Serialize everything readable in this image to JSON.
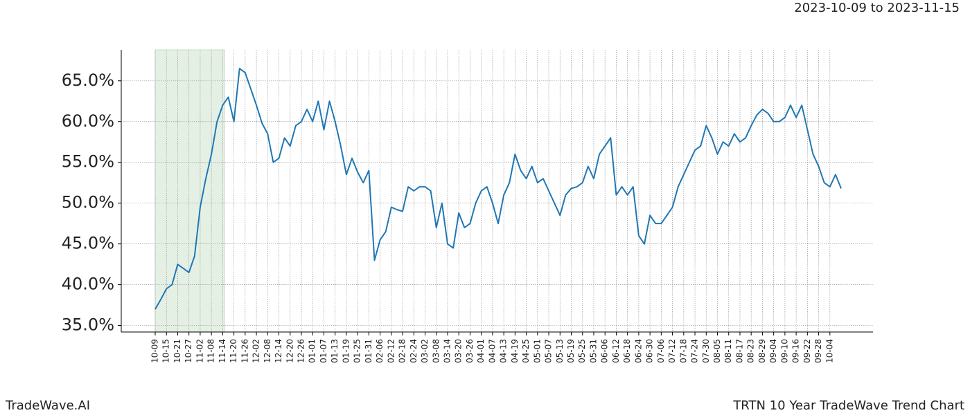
{
  "chart_data": {
    "type": "line",
    "subtitle": "2023-10-09 to 2023-11-15",
    "footer_left": "TradeWave.AI",
    "footer_right": "TRTN 10 Year TradeWave Trend Chart",
    "categories": [
      "10-09",
      null,
      "10-15",
      null,
      "10-21",
      null,
      "10-27",
      null,
      "11-02",
      null,
      "11-08",
      null,
      "11-14",
      null,
      "11-20",
      null,
      "11-26",
      null,
      "12-02",
      null,
      "12-08",
      null,
      "12-14",
      null,
      "12-20",
      null,
      "12-26",
      null,
      "01-01",
      null,
      "01-07",
      null,
      "01-13",
      null,
      "01-19",
      null,
      "01-25",
      null,
      "01-31",
      null,
      "02-06",
      null,
      "02-12",
      null,
      "02-18",
      null,
      "02-24",
      null,
      "03-02",
      null,
      "03-08",
      null,
      "03-14",
      null,
      "03-20",
      null,
      "03-26",
      null,
      "04-01",
      null,
      "04-07",
      null,
      "04-13",
      null,
      "04-19",
      null,
      "04-25",
      null,
      "05-01",
      null,
      "05-07",
      null,
      "05-13",
      null,
      "05-19",
      null,
      "05-25",
      null,
      "05-31",
      null,
      "06-06",
      null,
      "06-12",
      null,
      "06-18",
      null,
      "06-24",
      null,
      "06-30",
      null,
      "07-06",
      null,
      "07-12",
      null,
      "07-18",
      null,
      "07-24",
      null,
      "07-30",
      null,
      "08-05",
      null,
      "08-11",
      null,
      "08-17",
      null,
      "08-23",
      null,
      "08-29",
      null,
      "09-04",
      null,
      "09-10",
      null,
      "09-16",
      null,
      "09-22",
      null,
      "09-28",
      null,
      "10-04",
      null,
      null
    ],
    "series": [
      {
        "color": "#1f77b4",
        "values": [
          37,
          38.2,
          39.5,
          40,
          42.5,
          42,
          41.5,
          43.5,
          49.5,
          53,
          56,
          60,
          62,
          63,
          60,
          66.5,
          66,
          64,
          62,
          59.8,
          58.5,
          55,
          55.5,
          58,
          57,
          59.5,
          60,
          61.5,
          60,
          62.5,
          59,
          62.5,
          60,
          57,
          53.5,
          55.5,
          53.8,
          52.5,
          54,
          43,
          45.5,
          46.5,
          49.5,
          49.2,
          49,
          52,
          51.5,
          52,
          52,
          51.5,
          47,
          50,
          45,
          44.5,
          48.8,
          47,
          47.5,
          50,
          51.5,
          52,
          50,
          47.5,
          51,
          52.5,
          56,
          54,
          53,
          54.5,
          52.5,
          53,
          51.5,
          50,
          48.5,
          51,
          51.8,
          52,
          52.5,
          54.5,
          53,
          56,
          57,
          58,
          51,
          52,
          51,
          52,
          46,
          45,
          48.5,
          47.5,
          47.5,
          48.5,
          49.5,
          52,
          53.5,
          55,
          56.5,
          57,
          59.5,
          58,
          56,
          57.5,
          57,
          58.5,
          57.5,
          58,
          59.5,
          60.8,
          61.5,
          61,
          60,
          60,
          60.5,
          62,
          60.5,
          62,
          59,
          56,
          54.5,
          52.5,
          52,
          53.5,
          51.8
        ]
      }
    ],
    "ylim": [
      34.2,
      68.8
    ],
    "yticks": [
      {
        "value": 35,
        "label": "35.0%"
      },
      {
        "value": 40,
        "label": "40.0%"
      },
      {
        "value": 45,
        "label": "45.0%"
      },
      {
        "value": 50,
        "label": "50.0%"
      },
      {
        "value": 55,
        "label": "55.0%"
      },
      {
        "value": 60,
        "label": "60.0%"
      },
      {
        "value": 65,
        "label": "65.0%"
      }
    ],
    "grid": true,
    "highlight_color": "#e5f0e5"
  }
}
